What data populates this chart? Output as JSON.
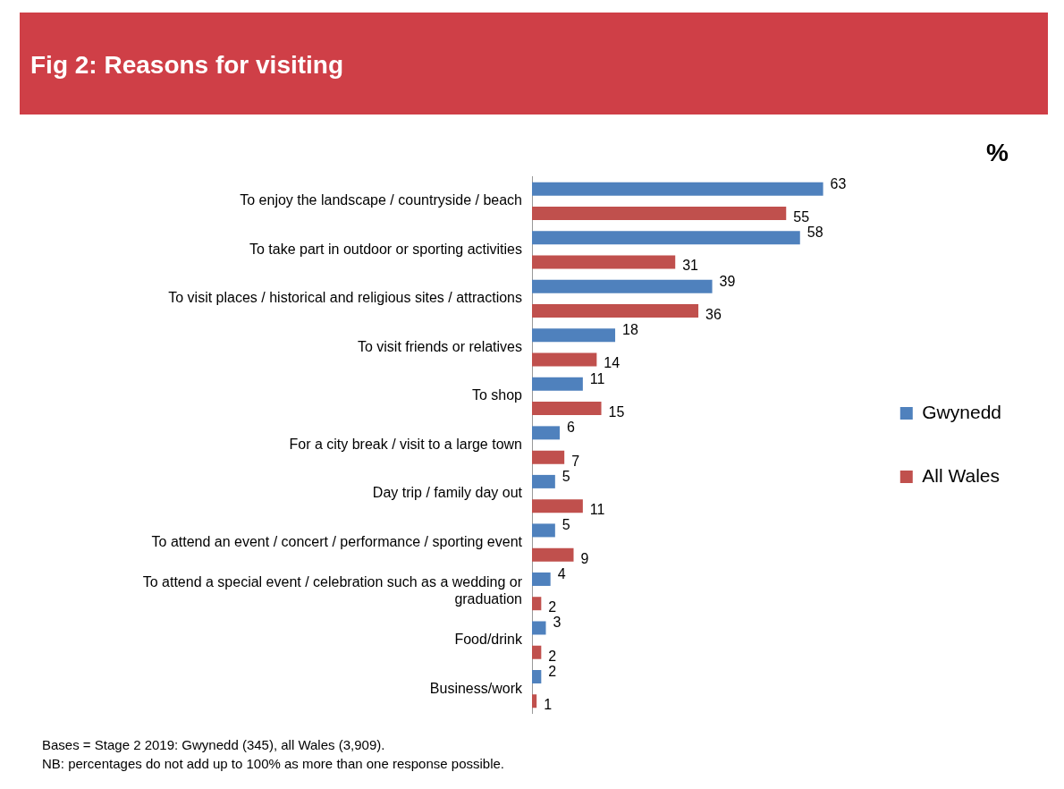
{
  "chart_data": {
    "type": "bar",
    "orientation": "horizontal",
    "title": "Fig 2: Reasons for visiting",
    "categories": [
      "To enjoy the landscape / countryside / beach",
      "To take part in outdoor or sporting activities",
      "To visit places / historical and religious sites / attractions",
      "To visit friends or relatives",
      "To shop",
      "For a city break / visit to a large town",
      "Day trip / family day out",
      "To attend an event / concert / performance / sporting event",
      "To attend a special event / celebration such as a wedding or graduation",
      "Food/drink",
      "Business/work"
    ],
    "series": [
      {
        "name": "Gwynedd",
        "color": "#4f81bd",
        "values": [
          63,
          58,
          39,
          18,
          11,
          6,
          5,
          5,
          4,
          3,
          2
        ]
      },
      {
        "name": "All Wales",
        "color": "#c0504d",
        "values": [
          55,
          31,
          36,
          14,
          15,
          7,
          11,
          9,
          2,
          2,
          1
        ]
      }
    ],
    "data_labels": true,
    "grid": false,
    "legend": "right",
    "tick_labels": "y",
    "annotations": [
      "%",
      "Bases = Stage 2 2019: Gwynedd (345), all Wales (3,909).",
      "NB: percentages do not add up to 100%  as more than one response possible."
    ]
  }
}
